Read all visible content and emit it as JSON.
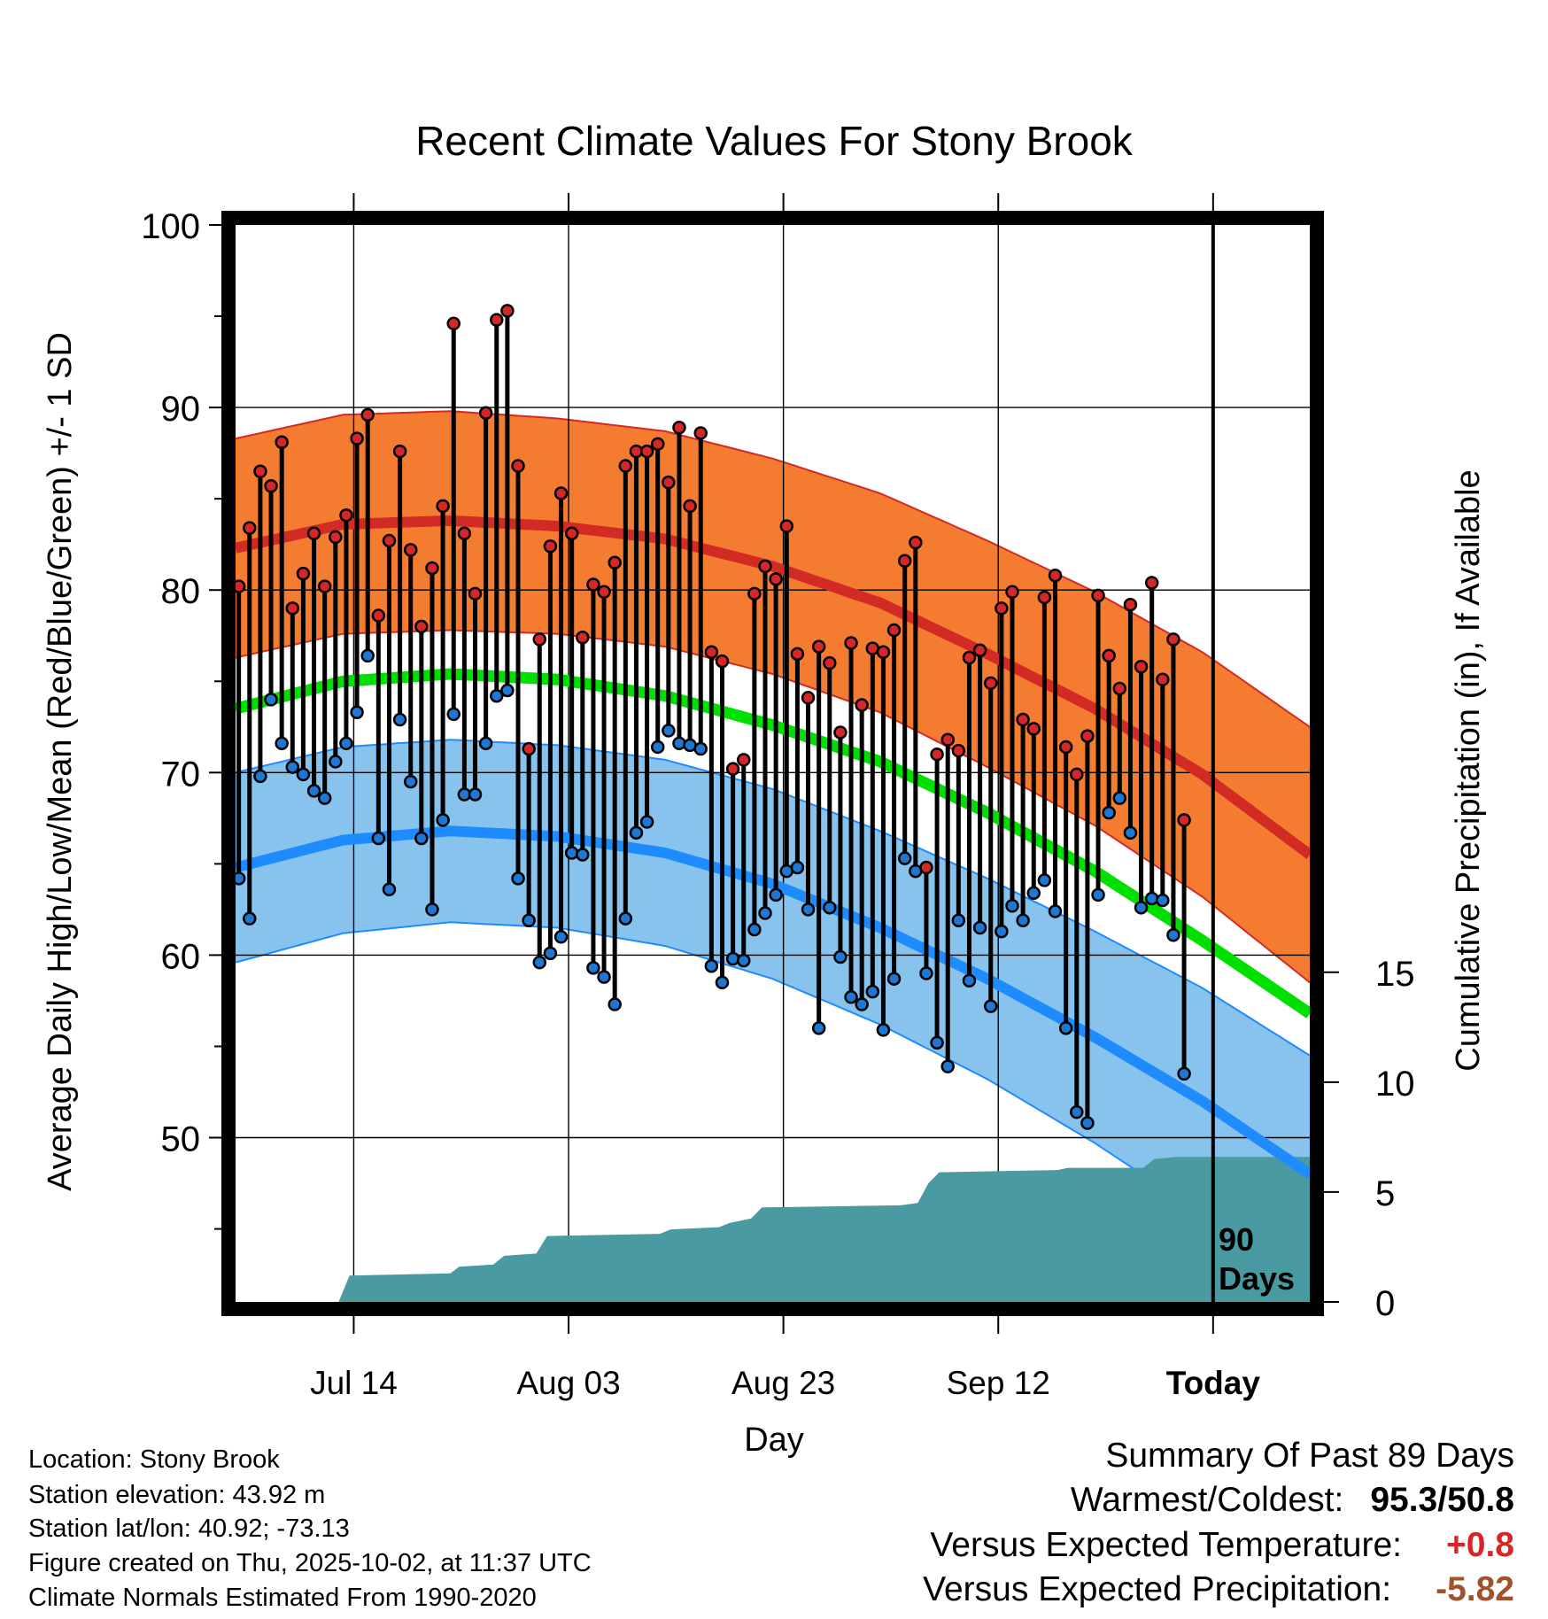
{
  "chart_data": {
    "type": "line",
    "title": "Recent Climate Values For Stony Brook",
    "xlabel": "Day",
    "ylabel_left": "Average Daily High/Low/Mean (Red/Blue/Green) +/- 1 SD",
    "ylabel_right": "Cumulative Precipitation (in), If Available",
    "x_ticks": [
      {
        "day": 11,
        "label": "Jul 14"
      },
      {
        "day": 31,
        "label": "Aug 03"
      },
      {
        "day": 51,
        "label": "Aug 23"
      },
      {
        "day": 71,
        "label": "Sep 12"
      },
      {
        "day": 91,
        "label": "Today"
      }
    ],
    "xlim": [
      0,
      100
    ],
    "ylim": [
      41,
      100
    ],
    "y_ticks": [
      50,
      60,
      70,
      80,
      90,
      100
    ],
    "y2_ticks": [
      0,
      5,
      10,
      15
    ],
    "y2lim": [
      0,
      49
    ],
    "today_day": 91,
    "today_annotation": [
      "90",
      "Days"
    ],
    "normals": {
      "days": [
        0,
        10,
        20,
        30,
        40,
        50,
        60,
        70,
        80,
        90,
        100
      ],
      "high_mean": [
        82.3,
        83.6,
        83.8,
        83.5,
        82.8,
        81.3,
        79.3,
        76.5,
        73.5,
        69.9,
        65.5
      ],
      "high_sd": [
        6.0,
        6.0,
        6.0,
        5.9,
        5.9,
        5.9,
        6.0,
        6.2,
        6.4,
        6.7,
        7.0
      ],
      "mean_normal": [
        73.5,
        75.0,
        75.4,
        75.1,
        74.2,
        72.6,
        70.6,
        67.8,
        64.6,
        60.8,
        56.8
      ],
      "low_mean": [
        64.8,
        66.3,
        66.8,
        66.5,
        65.6,
        63.9,
        61.5,
        58.7,
        55.5,
        52.0,
        48.0
      ],
      "low_sd": [
        5.2,
        5.1,
        5.0,
        5.0,
        5.1,
        5.2,
        5.3,
        5.5,
        5.8,
        6.2,
        6.5
      ]
    },
    "series": [
      {
        "name": "Daily High",
        "color": "#d62728",
        "values": [
          80.2,
          83.4,
          86.5,
          85.7,
          88.1,
          79.0,
          80.9,
          83.1,
          80.2,
          82.9,
          84.1,
          88.3,
          89.6,
          78.6,
          82.7,
          87.6,
          82.2,
          78.0,
          81.2,
          84.6,
          94.6,
          83.1,
          79.8,
          89.7,
          94.8,
          95.3,
          86.8,
          71.3,
          77.3,
          82.4,
          85.3,
          83.1,
          77.4,
          80.3,
          79.9,
          81.5,
          86.8,
          87.6,
          87.6,
          88.0,
          85.9,
          88.9,
          84.6,
          88.6,
          76.6,
          76.1,
          70.2,
          70.7,
          79.8,
          81.3,
          80.6,
          83.5,
          76.5,
          74.1,
          76.9,
          76.0,
          72.2,
          77.1,
          73.7,
          76.8,
          76.6,
          77.8,
          81.6,
          82.6,
          64.8,
          71.0,
          71.8,
          71.2,
          76.3,
          76.7,
          74.9,
          79.0,
          79.9,
          72.9,
          72.4,
          79.6,
          80.8,
          71.4,
          69.9,
          72.0,
          79.7,
          76.4,
          74.6,
          79.2,
          75.8,
          80.4,
          75.1,
          77.3,
          67.4
        ]
      },
      {
        "name": "Daily Low",
        "color": "#1f77d4",
        "values": [
          64.2,
          62.0,
          69.8,
          74.0,
          71.6,
          70.3,
          69.9,
          69.0,
          68.6,
          70.6,
          71.6,
          73.3,
          76.4,
          66.4,
          63.6,
          72.9,
          69.5,
          66.4,
          62.5,
          67.4,
          73.2,
          68.8,
          68.8,
          71.6,
          74.2,
          74.5,
          64.2,
          61.9,
          59.6,
          60.1,
          61.0,
          65.6,
          65.5,
          59.3,
          58.8,
          57.3,
          62.0,
          66.7,
          67.3,
          71.4,
          72.3,
          71.6,
          71.5,
          71.3,
          59.4,
          58.5,
          59.8,
          59.7,
          61.4,
          62.3,
          63.3,
          64.6,
          64.8,
          62.5,
          56.0,
          62.6,
          59.9,
          57.7,
          57.3,
          58.0,
          55.9,
          58.7,
          65.3,
          64.6,
          59.0,
          55.2,
          53.9,
          61.9,
          58.6,
          61.5,
          57.2,
          61.3,
          62.7,
          61.9,
          63.4,
          64.1,
          62.4,
          56.0,
          51.4,
          50.8,
          63.3,
          67.8,
          68.6,
          66.7,
          62.6,
          63.1,
          63.0,
          61.1,
          53.5
        ]
      },
      {
        "name": "Cumulative Precipitation",
        "color": "#4a9aa2",
        "points": [
          [
            0,
            0
          ],
          [
            9.6,
            0
          ],
          [
            10.6,
            1.2
          ],
          [
            20,
            1.3
          ],
          [
            20.8,
            1.6
          ],
          [
            24,
            1.7
          ],
          [
            25,
            2.1
          ],
          [
            28,
            2.2
          ],
          [
            29,
            3.0
          ],
          [
            39.5,
            3.1
          ],
          [
            40.5,
            3.3
          ],
          [
            45,
            3.4
          ],
          [
            46,
            3.6
          ],
          [
            48,
            3.8
          ],
          [
            49,
            4.3
          ],
          [
            62,
            4.4
          ],
          [
            63.5,
            4.5
          ],
          [
            64.5,
            5.4
          ],
          [
            65.5,
            5.9
          ],
          [
            76.5,
            6.0
          ],
          [
            77.5,
            6.1
          ],
          [
            84.5,
            6.1
          ],
          [
            85.5,
            6.5
          ],
          [
            87.5,
            6.6
          ],
          [
            100,
            6.6
          ]
        ]
      }
    ]
  },
  "info": {
    "location": "Location: Stony Brook",
    "elevation": "Station elevation: 43.92 m",
    "latlon": "Station lat/lon: 40.92; -73.13",
    "created": "Figure created on Thu, 2025-10-02, at 11:37 UTC",
    "normals": "Climate Normals Estimated From 1990-2020"
  },
  "summary": {
    "heading": "Summary Of Past 89 Days",
    "warm_cold_label": "Warmest/Coldest:",
    "warmest": "95.3",
    "slash": "/",
    "coldest": "50.8",
    "temp_label": "Versus Expected Temperature:",
    "temp_value": "+0.8",
    "precip_label": "Versus Expected Precipitation:",
    "precip_value": "-5.82",
    "temp_color": "#d62728",
    "precip_color": "#a0522d"
  },
  "colors": {
    "high_band": "#f47c30",
    "high_line": "#d22a24",
    "mean_line": "#00e000",
    "low_band": "#87c3ec",
    "low_line": "#1e8cff",
    "precip_fill": "#4a9aa2",
    "high_dot": "#d62728",
    "low_dot": "#1f77d4"
  }
}
